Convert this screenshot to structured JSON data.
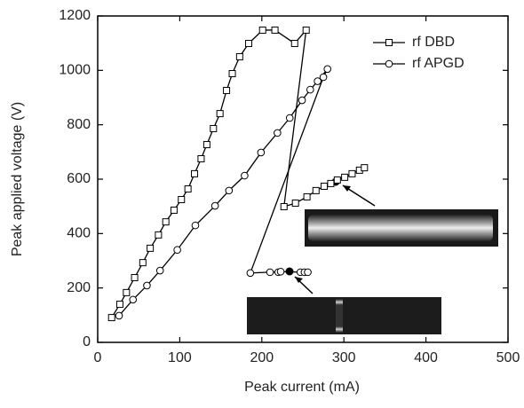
{
  "chart_data": {
    "type": "line",
    "x_label": "Peak current (mA)",
    "y_label": "Peak applied voltage (V)",
    "xlim": [
      0,
      500
    ],
    "xticks": [
      0,
      100,
      200,
      300,
      400,
      500
    ],
    "ylim": [
      0,
      1200
    ],
    "yticks": [
      0,
      200,
      400,
      600,
      800,
      1000,
      1200
    ],
    "legend": "top-right",
    "series": [
      {
        "name": "rf DBD",
        "color": "#000000",
        "marker": "square",
        "x": [
          17,
          27,
          35,
          45,
          55,
          64,
          74,
          83,
          93,
          102,
          110,
          118,
          126,
          133,
          141,
          149,
          157,
          164,
          173,
          184,
          201,
          216,
          240,
          254,
          227,
          241,
          255,
          266,
          276,
          284,
          292,
          301,
          310,
          319,
          325
        ],
        "values": [
          91,
          140,
          183,
          238,
          293,
          346,
          395,
          443,
          486,
          525,
          564,
          620,
          675,
          727,
          786,
          841,
          926,
          988,
          1050,
          1099,
          1148,
          1148,
          1099,
          1148,
          499,
          512,
          535,
          558,
          574,
          584,
          597,
          607,
          620,
          633,
          642
        ]
      },
      {
        "name": "rf APGD",
        "color": "#000000",
        "marker": "circle",
        "x": [
          26,
          43,
          60,
          76,
          97,
          119,
          143,
          160,
          179,
          199,
          219,
          234,
          249,
          259,
          268,
          280,
          275,
          186,
          210,
          220,
          223,
          247,
          252,
          256
        ],
        "values": [
          98,
          157,
          209,
          264,
          340,
          430,
          502,
          558,
          613,
          698,
          770,
          825,
          890,
          929,
          960,
          1005,
          975,
          255,
          258,
          258,
          260,
          258,
          258,
          258
        ]
      }
    ]
  }
}
